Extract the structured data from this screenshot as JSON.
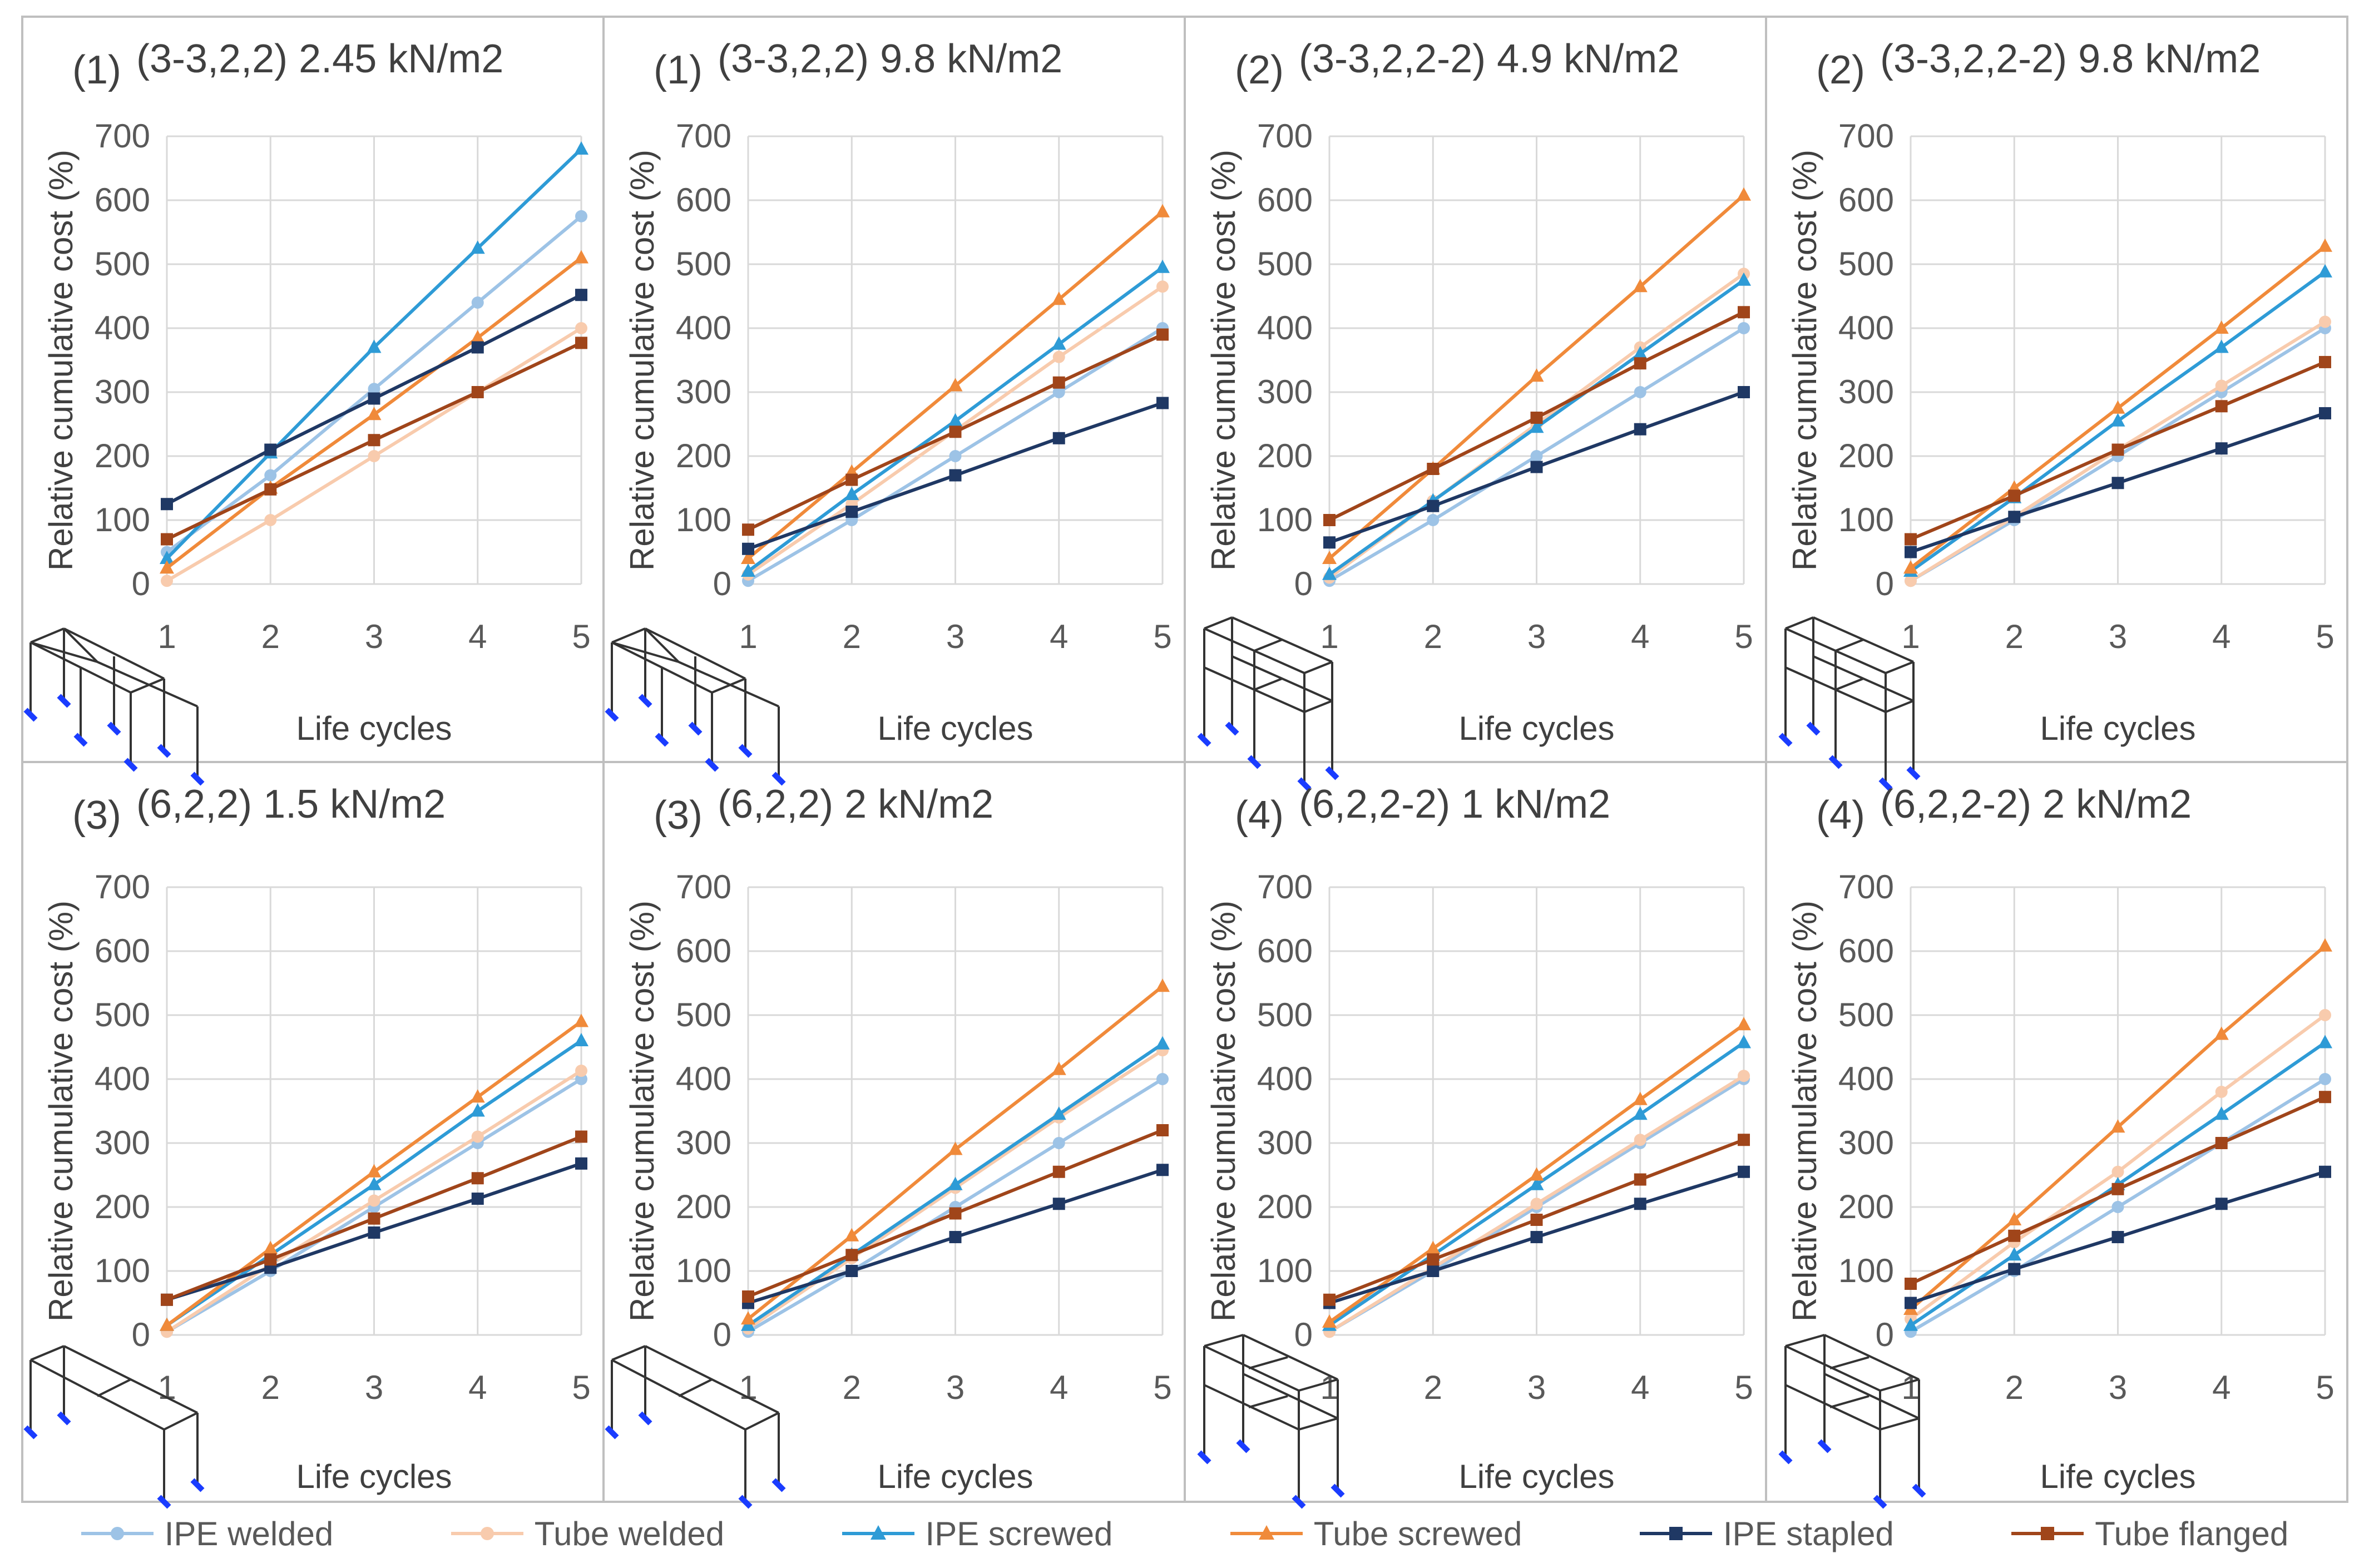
{
  "series_styles": [
    {
      "name": "IPE welded",
      "color": "#9DC3E6",
      "marker": "circle"
    },
    {
      "name": "Tube welded",
      "color": "#F8CBAD",
      "marker": "circle"
    },
    {
      "name": "IPE screwed",
      "color": "#2E9BD6",
      "marker": "triangle"
    },
    {
      "name": "Tube screwed",
      "color": "#F08A3A",
      "marker": "triangle"
    },
    {
      "name": "IPE stapled",
      "color": "#1F3864",
      "marker": "square"
    },
    {
      "name": "Tube flanged",
      "color": "#A0451A",
      "marker": "square"
    }
  ],
  "chart_data": [
    {
      "type": "line",
      "number": "(1)",
      "title": "(3-3,2,2) 2.45 kN/m2",
      "xlabel": "Life cycles",
      "ylabel": "Relative cumulative cost (%)",
      "x": [
        1,
        2,
        3,
        4,
        5
      ],
      "ylim": [
        0,
        700
      ],
      "yticks": [
        0,
        100,
        200,
        300,
        400,
        500,
        600,
        700
      ],
      "structure": "single",
      "series": [
        {
          "name": "IPE welded",
          "values": [
            50,
            170,
            305,
            440,
            575
          ]
        },
        {
          "name": "Tube welded",
          "values": [
            5,
            100,
            200,
            300,
            400
          ]
        },
        {
          "name": "IPE screwed",
          "values": [
            40,
            205,
            370,
            525,
            680
          ]
        },
        {
          "name": "Tube screwed",
          "values": [
            25,
            150,
            265,
            385,
            510
          ]
        },
        {
          "name": "IPE stapled",
          "values": [
            125,
            210,
            290,
            370,
            452
          ]
        },
        {
          "name": "Tube flanged",
          "values": [
            70,
            148,
            225,
            300,
            377
          ]
        }
      ]
    },
    {
      "type": "line",
      "number": "(1)",
      "title": "(3-3,2,2) 9.8 kN/m2",
      "xlabel": "Life cycles",
      "ylabel": "Relative cumulative cost (%)",
      "x": [
        1,
        2,
        3,
        4,
        5
      ],
      "ylim": [
        0,
        700
      ],
      "yticks": [
        0,
        100,
        200,
        300,
        400,
        500,
        600,
        700
      ],
      "structure": "single",
      "series": [
        {
          "name": "IPE welded",
          "values": [
            5,
            100,
            200,
            300,
            400
          ]
        },
        {
          "name": "Tube welded",
          "values": [
            15,
            125,
            240,
            355,
            465
          ]
        },
        {
          "name": "IPE screwed",
          "values": [
            20,
            140,
            255,
            375,
            495
          ]
        },
        {
          "name": "Tube screwed",
          "values": [
            40,
            175,
            310,
            445,
            582
          ]
        },
        {
          "name": "IPE stapled",
          "values": [
            55,
            113,
            170,
            228,
            283
          ]
        },
        {
          "name": "Tube flanged",
          "values": [
            85,
            163,
            238,
            315,
            390
          ]
        }
      ]
    },
    {
      "type": "line",
      "number": "(2)",
      "title": "(3-3,2,2-2) 4.9 kN/m2",
      "xlabel": "Life cycles",
      "ylabel": "Relative cumulative cost (%)",
      "x": [
        1,
        2,
        3,
        4,
        5
      ],
      "ylim": [
        0,
        700
      ],
      "yticks": [
        0,
        100,
        200,
        300,
        400,
        500,
        600,
        700
      ],
      "structure": "double",
      "series": [
        {
          "name": "IPE welded",
          "values": [
            5,
            100,
            200,
            300,
            400
          ]
        },
        {
          "name": "Tube welded",
          "values": [
            10,
            130,
            250,
            370,
            485
          ]
        },
        {
          "name": "IPE screwed",
          "values": [
            15,
            130,
            245,
            360,
            475
          ]
        },
        {
          "name": "Tube screwed",
          "values": [
            40,
            180,
            325,
            465,
            608
          ]
        },
        {
          "name": "IPE stapled",
          "values": [
            65,
            122,
            183,
            242,
            300
          ]
        },
        {
          "name": "Tube flanged",
          "values": [
            100,
            180,
            260,
            345,
            425
          ]
        }
      ]
    },
    {
      "type": "line",
      "number": "(2)",
      "title": "(3-3,2,2-2) 9.8 kN/m2",
      "xlabel": "Life cycles",
      "ylabel": "Relative cumulative cost (%)",
      "x": [
        1,
        2,
        3,
        4,
        5
      ],
      "ylim": [
        0,
        700
      ],
      "yticks": [
        0,
        100,
        200,
        300,
        400,
        500,
        600,
        700
      ],
      "structure": "double",
      "series": [
        {
          "name": "IPE welded",
          "values": [
            5,
            100,
            200,
            300,
            400
          ]
        },
        {
          "name": "Tube welded",
          "values": [
            5,
            105,
            210,
            310,
            410
          ]
        },
        {
          "name": "IPE screwed",
          "values": [
            20,
            135,
            255,
            370,
            488
          ]
        },
        {
          "name": "Tube screwed",
          "values": [
            25,
            150,
            275,
            400,
            528
          ]
        },
        {
          "name": "IPE stapled",
          "values": [
            50,
            105,
            158,
            212,
            267
          ]
        },
        {
          "name": "Tube flanged",
          "values": [
            70,
            138,
            210,
            278,
            347
          ]
        }
      ]
    },
    {
      "type": "line",
      "number": "(3)",
      "title": "(6,2,2) 1.5 kN/m2",
      "xlabel": "Life cycles",
      "ylabel": "Relative cumulative cost (%)",
      "x": [
        1,
        2,
        3,
        4,
        5
      ],
      "ylim": [
        0,
        700
      ],
      "yticks": [
        0,
        100,
        200,
        300,
        400,
        500,
        600,
        700
      ],
      "structure": "long-single",
      "series": [
        {
          "name": "IPE welded",
          "values": [
            5,
            100,
            200,
            300,
            400
          ]
        },
        {
          "name": "Tube welded",
          "values": [
            5,
            110,
            210,
            310,
            413
          ]
        },
        {
          "name": "IPE screwed",
          "values": [
            15,
            125,
            235,
            350,
            460
          ]
        },
        {
          "name": "Tube screwed",
          "values": [
            15,
            135,
            255,
            372,
            490
          ]
        },
        {
          "name": "IPE stapled",
          "values": [
            55,
            105,
            160,
            213,
            268
          ]
        },
        {
          "name": "Tube flanged",
          "values": [
            55,
            118,
            182,
            245,
            310
          ]
        }
      ]
    },
    {
      "type": "line",
      "number": "(3)",
      "title": "(6,2,2) 2 kN/m2",
      "xlabel": "Life cycles",
      "ylabel": "Relative cumulative cost (%)",
      "x": [
        1,
        2,
        3,
        4,
        5
      ],
      "ylim": [
        0,
        700
      ],
      "yticks": [
        0,
        100,
        200,
        300,
        400,
        500,
        600,
        700
      ],
      "structure": "long-single",
      "series": [
        {
          "name": "IPE welded",
          "values": [
            5,
            100,
            200,
            300,
            400
          ]
        },
        {
          "name": "Tube welded",
          "values": [
            10,
            120,
            230,
            340,
            445
          ]
        },
        {
          "name": "IPE screwed",
          "values": [
            15,
            125,
            235,
            345,
            455
          ]
        },
        {
          "name": "Tube screwed",
          "values": [
            25,
            155,
            290,
            415,
            545
          ]
        },
        {
          "name": "IPE stapled",
          "values": [
            50,
            100,
            153,
            205,
            258
          ]
        },
        {
          "name": "Tube flanged",
          "values": [
            60,
            125,
            190,
            255,
            320
          ]
        }
      ]
    },
    {
      "type": "line",
      "number": "(4)",
      "title": "(6,2,2-2) 1 kN/m2",
      "xlabel": "Life cycles",
      "ylabel": "Relative cumulative cost (%)",
      "x": [
        1,
        2,
        3,
        4,
        5
      ],
      "ylim": [
        0,
        700
      ],
      "yticks": [
        0,
        100,
        200,
        300,
        400,
        500,
        600,
        700
      ],
      "structure": "long-double",
      "series": [
        {
          "name": "IPE welded",
          "values": [
            5,
            100,
            200,
            300,
            400
          ]
        },
        {
          "name": "Tube welded",
          "values": [
            5,
            105,
            205,
            305,
            405
          ]
        },
        {
          "name": "IPE screwed",
          "values": [
            15,
            125,
            235,
            345,
            457
          ]
        },
        {
          "name": "Tube screwed",
          "values": [
            20,
            135,
            250,
            368,
            485
          ]
        },
        {
          "name": "IPE stapled",
          "values": [
            50,
            100,
            153,
            205,
            255
          ]
        },
        {
          "name": "Tube flanged",
          "values": [
            55,
            118,
            180,
            243,
            305
          ]
        }
      ]
    },
    {
      "type": "line",
      "number": "(4)",
      "title": "(6,2,2-2) 2 kN/m2",
      "xlabel": "Life cycles",
      "ylabel": "Relative cumulative cost (%)",
      "x": [
        1,
        2,
        3,
        4,
        5
      ],
      "ylim": [
        0,
        700
      ],
      "yticks": [
        0,
        100,
        200,
        300,
        400,
        500,
        600,
        700
      ],
      "structure": "long-double",
      "series": [
        {
          "name": "IPE welded",
          "values": [
            5,
            100,
            200,
            300,
            400
          ]
        },
        {
          "name": "Tube welded",
          "values": [
            25,
            145,
            255,
            380,
            500
          ]
        },
        {
          "name": "IPE screwed",
          "values": [
            15,
            125,
            235,
            345,
            457
          ]
        },
        {
          "name": "Tube screwed",
          "values": [
            40,
            180,
            325,
            470,
            608
          ]
        },
        {
          "name": "IPE stapled",
          "values": [
            50,
            103,
            153,
            205,
            255
          ]
        },
        {
          "name": "Tube flanged",
          "values": [
            80,
            155,
            228,
            300,
            372
          ]
        }
      ]
    }
  ]
}
